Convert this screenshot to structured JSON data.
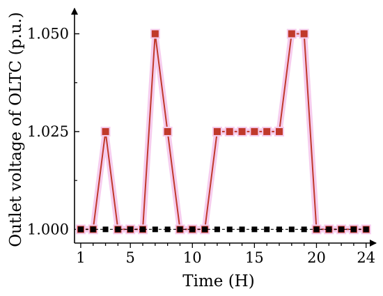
{
  "chart_data": {
    "type": "line",
    "xlabel": "Time (H)",
    "ylabel": "Outlet voltage of OLTC (p.u.)",
    "xlim": [
      0.5,
      24.8
    ],
    "ylim": [
      0.9965,
      1.0565
    ],
    "x_ticks": [
      1,
      5,
      10,
      15,
      20,
      24
    ],
    "y_ticks": [
      1.0,
      1.025,
      1.05
    ],
    "y_tick_labels": [
      "1.000",
      "1.025",
      "1.050"
    ],
    "grid": false,
    "legend": "none",
    "series": [
      {
        "color": "#c0392b",
        "marker": "square",
        "x": [
          1,
          2,
          3,
          4,
          5,
          6,
          7,
          8,
          9,
          10,
          11,
          12,
          13,
          14,
          15,
          16,
          17,
          18,
          19,
          20,
          21,
          22,
          23,
          24
        ],
        "y": [
          1.0,
          1.0,
          1.025,
          1.0,
          1.0,
          1.0,
          1.05,
          1.025,
          1.0,
          1.0,
          1.0,
          1.025,
          1.025,
          1.025,
          1.025,
          1.025,
          1.025,
          1.05,
          1.05,
          1.0,
          1.0,
          1.0,
          1.0,
          1.0
        ]
      },
      {
        "color": "#000000",
        "marker": "square",
        "line_style": "dashed",
        "x": [
          1,
          2,
          3,
          4,
          5,
          6,
          7,
          8,
          9,
          10,
          11,
          12,
          13,
          14,
          15,
          16,
          17,
          18,
          19,
          20,
          21,
          22,
          23,
          24
        ],
        "y": [
          1.0,
          1.0,
          1.0,
          1.0,
          1.0,
          1.0,
          1.0,
          1.0,
          1.0,
          1.0,
          1.0,
          1.0,
          1.0,
          1.0,
          1.0,
          1.0,
          1.0,
          1.0,
          1.0,
          1.0,
          1.0,
          1.0,
          1.0,
          1.0
        ]
      }
    ]
  }
}
